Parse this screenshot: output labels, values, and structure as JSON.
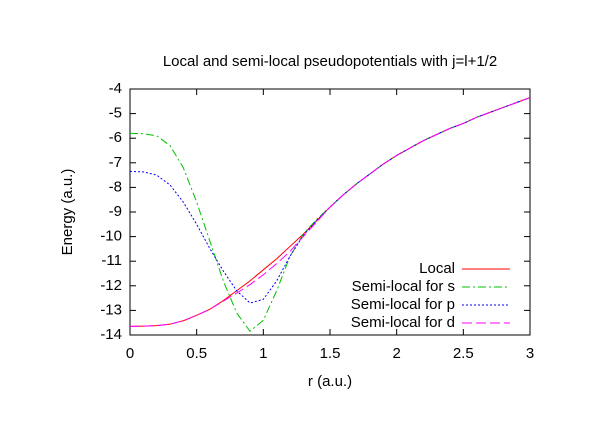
{
  "chart_data": {
    "type": "line",
    "title": "Local and semi-local pseudopotentials with j=l+1/2",
    "x_label": "r (a.u.)",
    "y_label": "Energy (a.u.)",
    "x": [
      0,
      0.1,
      0.2,
      0.3,
      0.4,
      0.5,
      0.6,
      0.7,
      0.8,
      0.9,
      1.0,
      1.1,
      1.2,
      1.3,
      1.4,
      1.5,
      1.6,
      1.7,
      1.8,
      1.9,
      2.0,
      2.1,
      2.2,
      2.3,
      2.4,
      2.5,
      2.6,
      2.7,
      2.8,
      2.9,
      3.0
    ],
    "series": [
      {
        "name": "Local",
        "color": "#ff0000",
        "dash": "none",
        "values": [
          -13.65,
          -13.64,
          -13.62,
          -13.56,
          -13.42,
          -13.2,
          -12.95,
          -12.6,
          -12.2,
          -11.8,
          -11.35,
          -10.9,
          -10.4,
          -9.9,
          -9.35,
          -8.8,
          -8.3,
          -7.85,
          -7.45,
          -7.05,
          -6.7,
          -6.4,
          -6.1,
          -5.85,
          -5.6,
          -5.4,
          -5.15,
          -4.95,
          -4.75,
          -4.55,
          -4.35
        ]
      },
      {
        "name": "Semi-local for s",
        "color": "#00c000",
        "dash": "8,3,2,3",
        "values": [
          -5.8,
          -5.82,
          -5.9,
          -6.3,
          -7.2,
          -8.6,
          -10.2,
          -11.8,
          -13.1,
          -13.85,
          -13.4,
          -12.2,
          -10.8,
          -9.9,
          -9.3,
          -8.8,
          -8.3,
          -7.85,
          -7.45,
          -7.05,
          -6.7,
          -6.4,
          -6.1,
          -5.85,
          -5.6,
          -5.4,
          -5.15,
          -4.95,
          -4.75,
          -4.55,
          -4.35
        ]
      },
      {
        "name": "Semi-local for p",
        "color": "#0000ff",
        "dash": "2,2",
        "values": [
          -7.35,
          -7.37,
          -7.5,
          -7.9,
          -8.6,
          -9.5,
          -10.5,
          -11.4,
          -12.2,
          -12.7,
          -12.55,
          -11.8,
          -10.8,
          -9.95,
          -9.35,
          -8.8,
          -8.3,
          -7.85,
          -7.45,
          -7.05,
          -6.7,
          -6.4,
          -6.1,
          -5.85,
          -5.6,
          -5.4,
          -5.15,
          -4.95,
          -4.75,
          -4.55,
          -4.35
        ]
      },
      {
        "name": "Semi-local for d",
        "color": "#ff00ff",
        "dash": "10,4",
        "values": [
          -13.65,
          -13.64,
          -13.62,
          -13.56,
          -13.42,
          -13.2,
          -12.95,
          -12.62,
          -12.3,
          -11.95,
          -11.55,
          -11.1,
          -10.6,
          -10.0,
          -9.4,
          -8.8,
          -8.3,
          -7.85,
          -7.45,
          -7.05,
          -6.7,
          -6.4,
          -6.1,
          -5.85,
          -5.6,
          -5.4,
          -5.15,
          -4.95,
          -4.75,
          -4.55,
          -4.35
        ]
      }
    ],
    "xlim": [
      0,
      3
    ],
    "xticks": [
      0,
      0.5,
      1,
      1.5,
      2,
      2.5,
      3
    ],
    "ylim": [
      -14,
      -4
    ],
    "yticks": [
      -14,
      -13,
      -12,
      -11,
      -10,
      -9,
      -8,
      -7,
      -6,
      -5,
      -4
    ],
    "grid": false,
    "legend": "lower right"
  }
}
